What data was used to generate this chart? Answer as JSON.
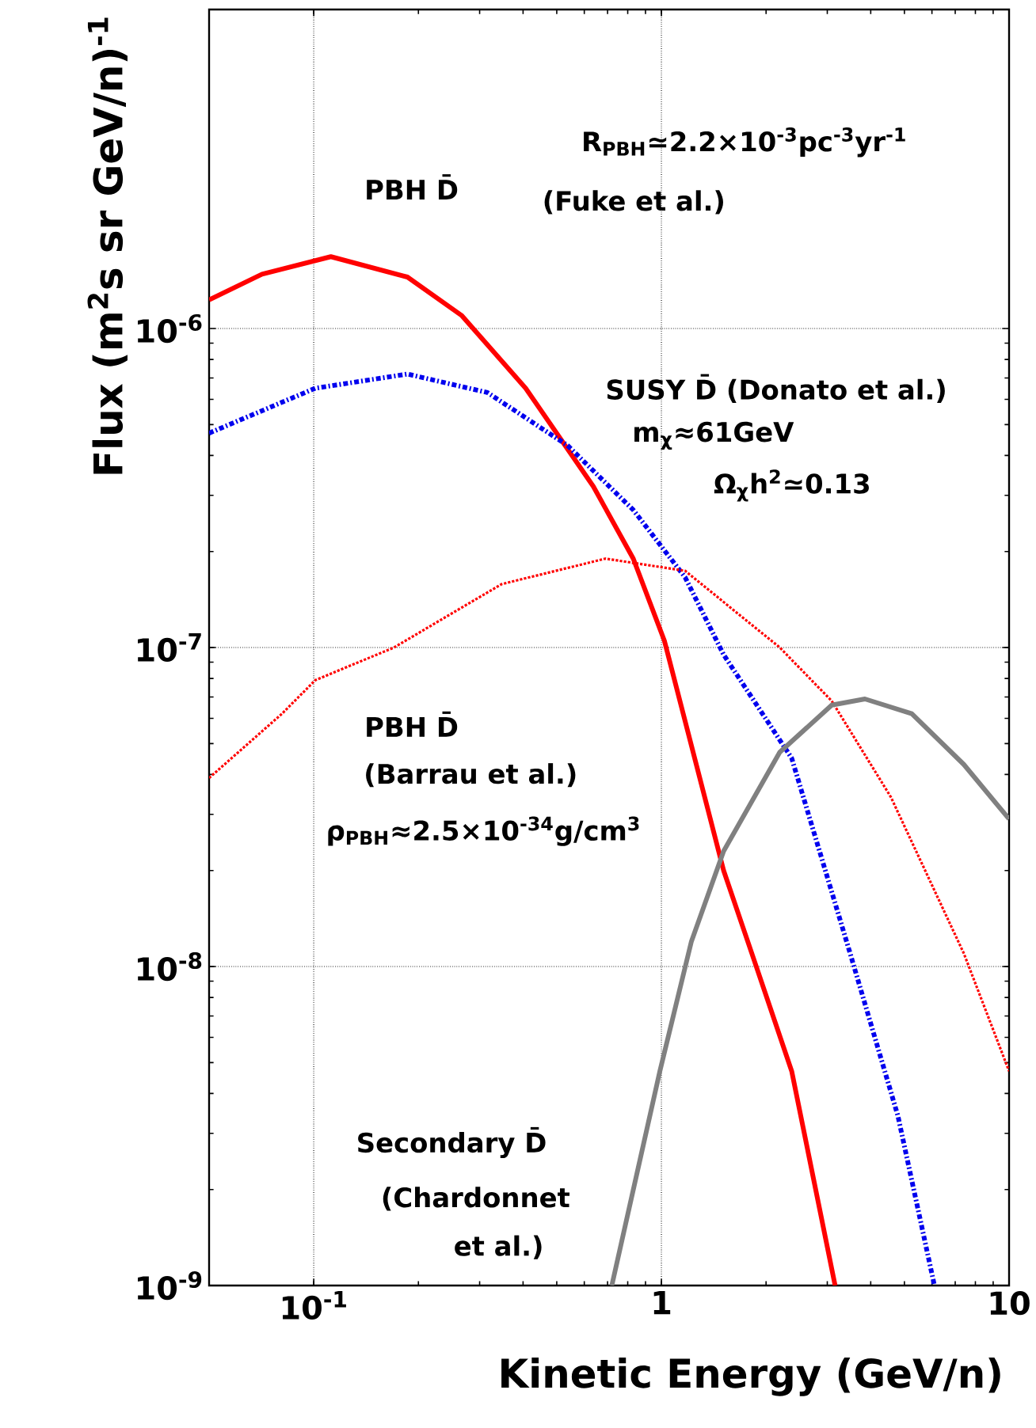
{
  "chart_data": {
    "type": "line",
    "log": "xy",
    "grid": true,
    "xlabel": "Kinetic Energy (GeV/n)",
    "ylabel": "Flux (m$^{2}$s sr GeV/n)$^{-1}$",
    "xlim": [
      0.05,
      10
    ],
    "ylim": [
      1e-09,
      1e-05
    ],
    "xticks": [
      {
        "value": 0.1,
        "label": "10$^{-1}$"
      },
      1,
      10
    ],
    "yticks": [
      {
        "value": 1e-09,
        "label": "10$^{-9}$"
      },
      {
        "value": 1e-08,
        "label": "10$^{-8}$"
      },
      {
        "value": 1e-07,
        "label": "10$^{-7}$"
      },
      {
        "value": 1e-06,
        "label": "10$^{-6}$"
      }
    ],
    "series": [
      {
        "color": "#ff0000",
        "line_style": "solid",
        "x": [
          0.05,
          0.071,
          0.112,
          0.186,
          0.266,
          0.407,
          0.637,
          0.83,
          1.02,
          1.51,
          1.82,
          2.37,
          3.16
        ],
        "values": [
          1.23e-06,
          1.48e-06,
          1.68e-06,
          1.45e-06,
          1.1e-06,
          6.5e-07,
          3.2e-07,
          1.9e-07,
          1.05e-07,
          2e-08,
          1.1e-08,
          4.7e-09,
          1e-09
        ]
      },
      {
        "color": "#0000ee",
        "line_style": "dashed",
        "x": [
          0.05,
          0.101,
          0.186,
          0.316,
          0.537,
          0.83,
          1.17,
          1.51,
          2.37,
          3.49,
          4.79,
          6.1
        ],
        "values": [
          4.7e-07,
          6.5e-07,
          7.2e-07,
          6.3e-07,
          4.3e-07,
          2.7e-07,
          1.66e-07,
          9.5e-08,
          4.5e-08,
          1.1e-08,
          3.4e-09,
          1e-09
        ]
      },
      {
        "color": "#ff0000",
        "line_style": "dotted",
        "x": [
          0.05,
          0.081,
          0.101,
          0.17,
          0.347,
          0.69,
          1.17,
          2.19,
          3.09,
          4.57,
          7.41,
          10
        ],
        "values": [
          3.9e-08,
          6.2e-08,
          7.9e-08,
          1e-07,
          1.58e-07,
          1.9e-07,
          1.74e-07,
          1e-07,
          6.8e-08,
          3.4e-08,
          1.1e-08,
          4.7e-09
        ]
      },
      {
        "color": "#808080",
        "line_style": "solid",
        "x": [
          0.72,
          0.99,
          1.22,
          1.51,
          2.19,
          3.09,
          3.85,
          5.25,
          7.41,
          10
        ],
        "values": [
          1e-09,
          4.7e-09,
          1.2e-08,
          2.3e-08,
          4.7e-08,
          6.6e-08,
          6.9e-08,
          6.2e-08,
          4.3e-08,
          2.9e-08
        ]
      }
    ],
    "annotations": [
      "PBH D̄",
      "R$_{PBH}$≃2.2×10$^{-3}$pc$^{-3}$yr$^{-1}$",
      "(Fuke et al.)",
      "SUSY D̄ (Donato et al.)",
      "m$_{χ}$≈61GeV",
      "Ω$_{χ}$h$^{2}$≃0.13",
      "PBH D̄",
      "(Barrau et al.)",
      "ρ$_{PBH}$≈2.5×10$^{-34}$g/cm$^{3}$",
      "Secondary D̄",
      "(Chardonnet",
      "et al.)"
    ]
  }
}
